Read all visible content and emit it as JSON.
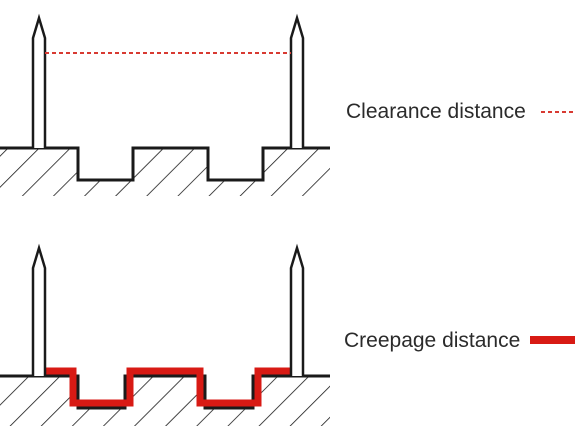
{
  "legend": {
    "clearance": {
      "label": "Clearance distance",
      "color": "#d83a32",
      "line_style": "dashed"
    },
    "creepage": {
      "label": "Creepage distance",
      "color": "#d81a14",
      "line_style": "solid-thick"
    }
  },
  "colors": {
    "outline": "#1a1a1a",
    "hatch": "#1a1a1a",
    "background": "#ffffff"
  }
}
